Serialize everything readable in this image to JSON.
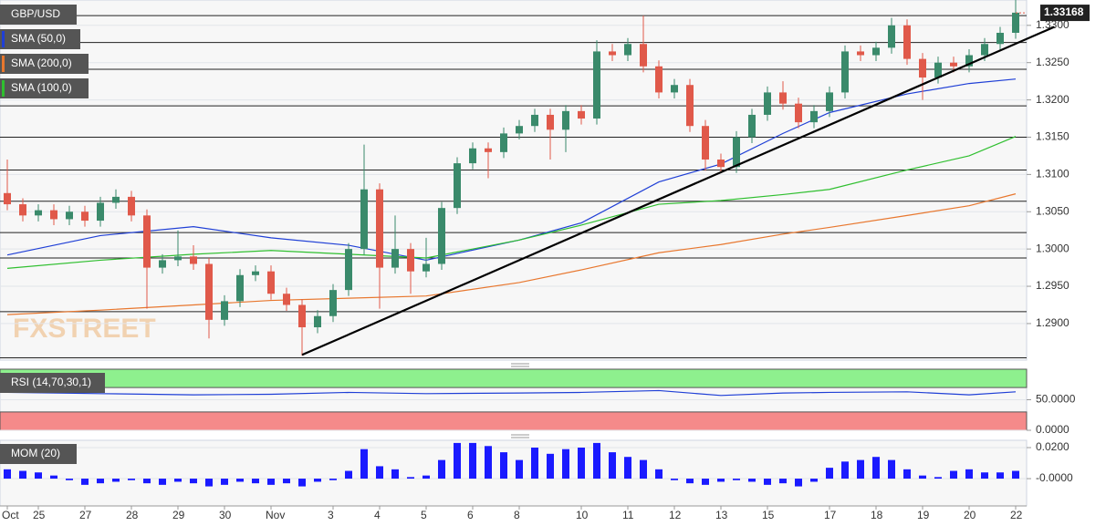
{
  "chart_data": [
    {
      "type": "candlestick",
      "title": "GBP/USD",
      "up_color": "#3a8a6b",
      "down_color": "#e0594a",
      "open": [
        1.3075,
        1.306,
        1.3045,
        1.3052,
        1.304,
        1.305,
        1.3038,
        1.3062,
        1.307,
        1.3045,
        1.2975,
        1.2985,
        1.299,
        1.298,
        1.2905,
        1.293,
        1.2965,
        1.297,
        1.294,
        1.2925,
        1.2895,
        1.291,
        1.2945,
        1.3,
        1.308,
        1.2975,
        1.3,
        1.297,
        1.298,
        1.3055,
        1.3115,
        1.3135,
        1.313,
        1.3155,
        1.3165,
        1.318,
        1.316,
        1.3185,
        1.3175,
        1.3265,
        1.326,
        1.3275,
        1.3245,
        1.321,
        1.322,
        1.3165,
        1.312,
        1.311,
        1.315,
        1.318,
        1.321,
        1.3195,
        1.317,
        1.3185,
        1.321,
        1.3265,
        1.326,
        1.327,
        1.33,
        1.3255,
        1.323,
        1.325,
        1.3245,
        1.326,
        1.3275,
        1.329
      ],
      "high": [
        1.312,
        1.3068,
        1.306,
        1.306,
        1.3058,
        1.3058,
        1.307,
        1.308,
        1.3078,
        1.3053,
        1.2993,
        1.3025,
        1.3005,
        1.2988,
        1.2938,
        1.2973,
        1.2978,
        1.2978,
        1.2948,
        1.2933,
        1.2918,
        1.2953,
        1.3008,
        1.314,
        1.3088,
        1.3045,
        1.3008,
        1.3015,
        1.3063,
        1.3123,
        1.3143,
        1.3143,
        1.3163,
        1.3173,
        1.3188,
        1.3188,
        1.3193,
        1.3193,
        1.328,
        1.3275,
        1.3283,
        1.3313,
        1.3253,
        1.3228,
        1.3228,
        1.3173,
        1.3128,
        1.3158,
        1.3188,
        1.3218,
        1.3225,
        1.3203,
        1.3193,
        1.3218,
        1.3273,
        1.3273,
        1.3278,
        1.331,
        1.3308,
        1.3263,
        1.3258,
        1.3258,
        1.3268,
        1.3283,
        1.3298,
        1.3338
      ],
      "low": [
        1.3052,
        1.3037,
        1.3037,
        1.3032,
        1.3032,
        1.303,
        1.303,
        1.3054,
        1.3037,
        1.292,
        1.2967,
        1.2977,
        1.2972,
        1.288,
        1.2897,
        1.2922,
        1.2957,
        1.2932,
        1.2917,
        1.2857,
        1.2887,
        1.2902,
        1.2937,
        1.2992,
        1.292,
        1.2967,
        1.294,
        1.2962,
        1.2972,
        1.3047,
        1.3107,
        1.3095,
        1.3122,
        1.3147,
        1.3157,
        1.312,
        1.313,
        1.3167,
        1.3167,
        1.3252,
        1.3252,
        1.3237,
        1.3202,
        1.3202,
        1.3157,
        1.3105,
        1.3102,
        1.3102,
        1.3142,
        1.3172,
        1.3187,
        1.3162,
        1.3162,
        1.3177,
        1.3202,
        1.3252,
        1.3252,
        1.3262,
        1.3247,
        1.32,
        1.3222,
        1.3237,
        1.3237,
        1.3252,
        1.3267,
        1.3282
      ],
      "close": [
        1.306,
        1.3045,
        1.3052,
        1.304,
        1.305,
        1.3038,
        1.3062,
        1.307,
        1.3045,
        1.2975,
        1.2985,
        1.299,
        1.298,
        1.2905,
        1.293,
        1.2965,
        1.297,
        1.294,
        1.2925,
        1.2895,
        1.291,
        1.2945,
        1.3,
        1.308,
        1.2975,
        1.3,
        1.297,
        1.298,
        1.3055,
        1.3115,
        1.3135,
        1.313,
        1.3155,
        1.3165,
        1.318,
        1.316,
        1.3185,
        1.3175,
        1.3265,
        1.326,
        1.3275,
        1.3245,
        1.321,
        1.322,
        1.3165,
        1.312,
        1.311,
        1.315,
        1.318,
        1.321,
        1.3195,
        1.317,
        1.3185,
        1.321,
        1.3265,
        1.326,
        1.327,
        1.33,
        1.3255,
        1.323,
        1.325,
        1.3245,
        1.326,
        1.3275,
        1.329,
        1.3317
      ],
      "series": [
        {
          "name": "SMA (50,0)",
          "color": "#1f3fd6",
          "x": [
            0,
            6,
            12,
            17,
            22,
            27,
            33,
            37,
            42,
            46,
            50,
            53,
            58,
            62,
            65
          ],
          "values": [
            1.2992,
            1.3018,
            1.303,
            1.3015,
            1.3005,
            1.2985,
            1.3012,
            1.3035,
            1.309,
            1.3114,
            1.3155,
            1.3183,
            1.3208,
            1.3222,
            1.3228
          ]
        },
        {
          "name": "SMA (200,0)",
          "color": "#e8772e",
          "x": [
            0,
            6,
            12,
            17,
            22,
            27,
            33,
            37,
            42,
            46,
            50,
            53,
            58,
            62,
            65
          ],
          "values": [
            1.2912,
            1.2918,
            1.2925,
            1.2931,
            1.2934,
            1.2937,
            1.2955,
            1.2972,
            1.2995,
            1.3006,
            1.302,
            1.3029,
            1.3045,
            1.3058,
            1.3074
          ]
        },
        {
          "name": "SMA (100,0)",
          "color": "#2fbf2f",
          "x": [
            0,
            6,
            12,
            17,
            22,
            27,
            33,
            37,
            42,
            46,
            50,
            53,
            58,
            62,
            65
          ],
          "values": [
            1.2974,
            1.2985,
            1.2993,
            1.2998,
            1.2993,
            1.2988,
            1.3012,
            1.3032,
            1.306,
            1.3065,
            1.3073,
            1.308,
            1.3106,
            1.3125,
            1.3151
          ]
        }
      ],
      "trendline": {
        "x": [
          19,
          67.5
        ],
        "values": [
          1.2858,
          1.3298
        ]
      },
      "levels": [
        1.3313,
        1.3277,
        1.3241,
        1.3192,
        1.315,
        1.3106,
        1.3064,
        1.3022,
        1.2988,
        1.2916,
        1.2854
      ],
      "last_price": {
        "value": 1.33168,
        "label": "1.33168"
      },
      "ylim": [
        1.2851,
        1.3334
      ],
      "yticks": [
        {
          "value": 1.33,
          "label": "1.3300"
        },
        {
          "value": 1.325,
          "label": "1.3250"
        },
        {
          "value": 1.32,
          "label": "1.3200"
        },
        {
          "value": 1.315,
          "label": "1.3150"
        },
        {
          "value": 1.31,
          "label": "1.3100"
        },
        {
          "value": 1.305,
          "label": "1.3050"
        },
        {
          "value": 1.3,
          "label": "1.3000"
        },
        {
          "value": 1.295,
          "label": "1.2950"
        },
        {
          "value": 1.29,
          "label": "1.2900"
        }
      ],
      "watermark": "FXSTREET"
    },
    {
      "type": "line",
      "title": "RSI (14,70,30,1)",
      "color": "#1f3fd6",
      "x": [
        0,
        6,
        12,
        17,
        22,
        27,
        33,
        37,
        42,
        46,
        50,
        53,
        58,
        62,
        65
      ],
      "values": [
        62,
        60,
        58,
        59,
        62,
        60,
        61,
        62,
        65,
        57,
        61,
        62,
        63,
        58,
        63
      ],
      "overbought": 70,
      "oversold": 30,
      "ylim": [
        0,
        100
      ],
      "yticks": [
        {
          "value": 50,
          "label": "50.0000"
        },
        {
          "value": 0,
          "label": "0.0000"
        }
      ]
    },
    {
      "type": "bar",
      "title": "MOM (20)",
      "color": "#1a1aff",
      "values": [
        0.006,
        0.005,
        0.004,
        0.002,
        -0.001,
        -0.004,
        -0.003,
        -0.002,
        -0.001,
        -0.003,
        -0.004,
        -0.002,
        -0.003,
        -0.005,
        -0.004,
        -0.002,
        -0.003,
        -0.004,
        -0.003,
        -0.005,
        -0.002,
        -0.001,
        0.005,
        0.019,
        0.008,
        0.006,
        0.001,
        0.002,
        0.012,
        0.023,
        0.023,
        0.021,
        0.017,
        0.012,
        0.02,
        0.016,
        0.019,
        0.02,
        0.023,
        0.017,
        0.014,
        0.012,
        0.006,
        -0.001,
        -0.003,
        -0.004,
        -0.002,
        -0.001,
        -0.002,
        -0.004,
        -0.003,
        -0.005,
        -0.002,
        0.007,
        0.011,
        0.012,
        0.014,
        0.012,
        0.006,
        0.002,
        0.001,
        0.005,
        0.006,
        0.004,
        0.004,
        0.005
      ],
      "categories": [
        "Oct",
        null,
        "25",
        null,
        null,
        "27",
        null,
        null,
        "28",
        null,
        null,
        "29",
        null,
        null,
        "30",
        null,
        null,
        "Nov",
        null,
        null,
        null,
        "3",
        null,
        null,
        "4",
        null,
        null,
        "5",
        null,
        null,
        "6",
        null,
        null,
        "8",
        null,
        null,
        null,
        "10",
        null,
        null,
        "11",
        null,
        null,
        "12",
        null,
        null,
        "13",
        null,
        null,
        "15",
        null,
        null,
        null,
        "17",
        null,
        null,
        "18",
        null,
        null,
        "19",
        null,
        null,
        "20",
        null,
        null,
        "22"
      ],
      "ylim": [
        -0.0176,
        0.0247
      ],
      "yticks": [
        {
          "value": 0.02,
          "label": "0.0200"
        },
        {
          "value": 0,
          "label": "-0.0000"
        }
      ]
    }
  ]
}
